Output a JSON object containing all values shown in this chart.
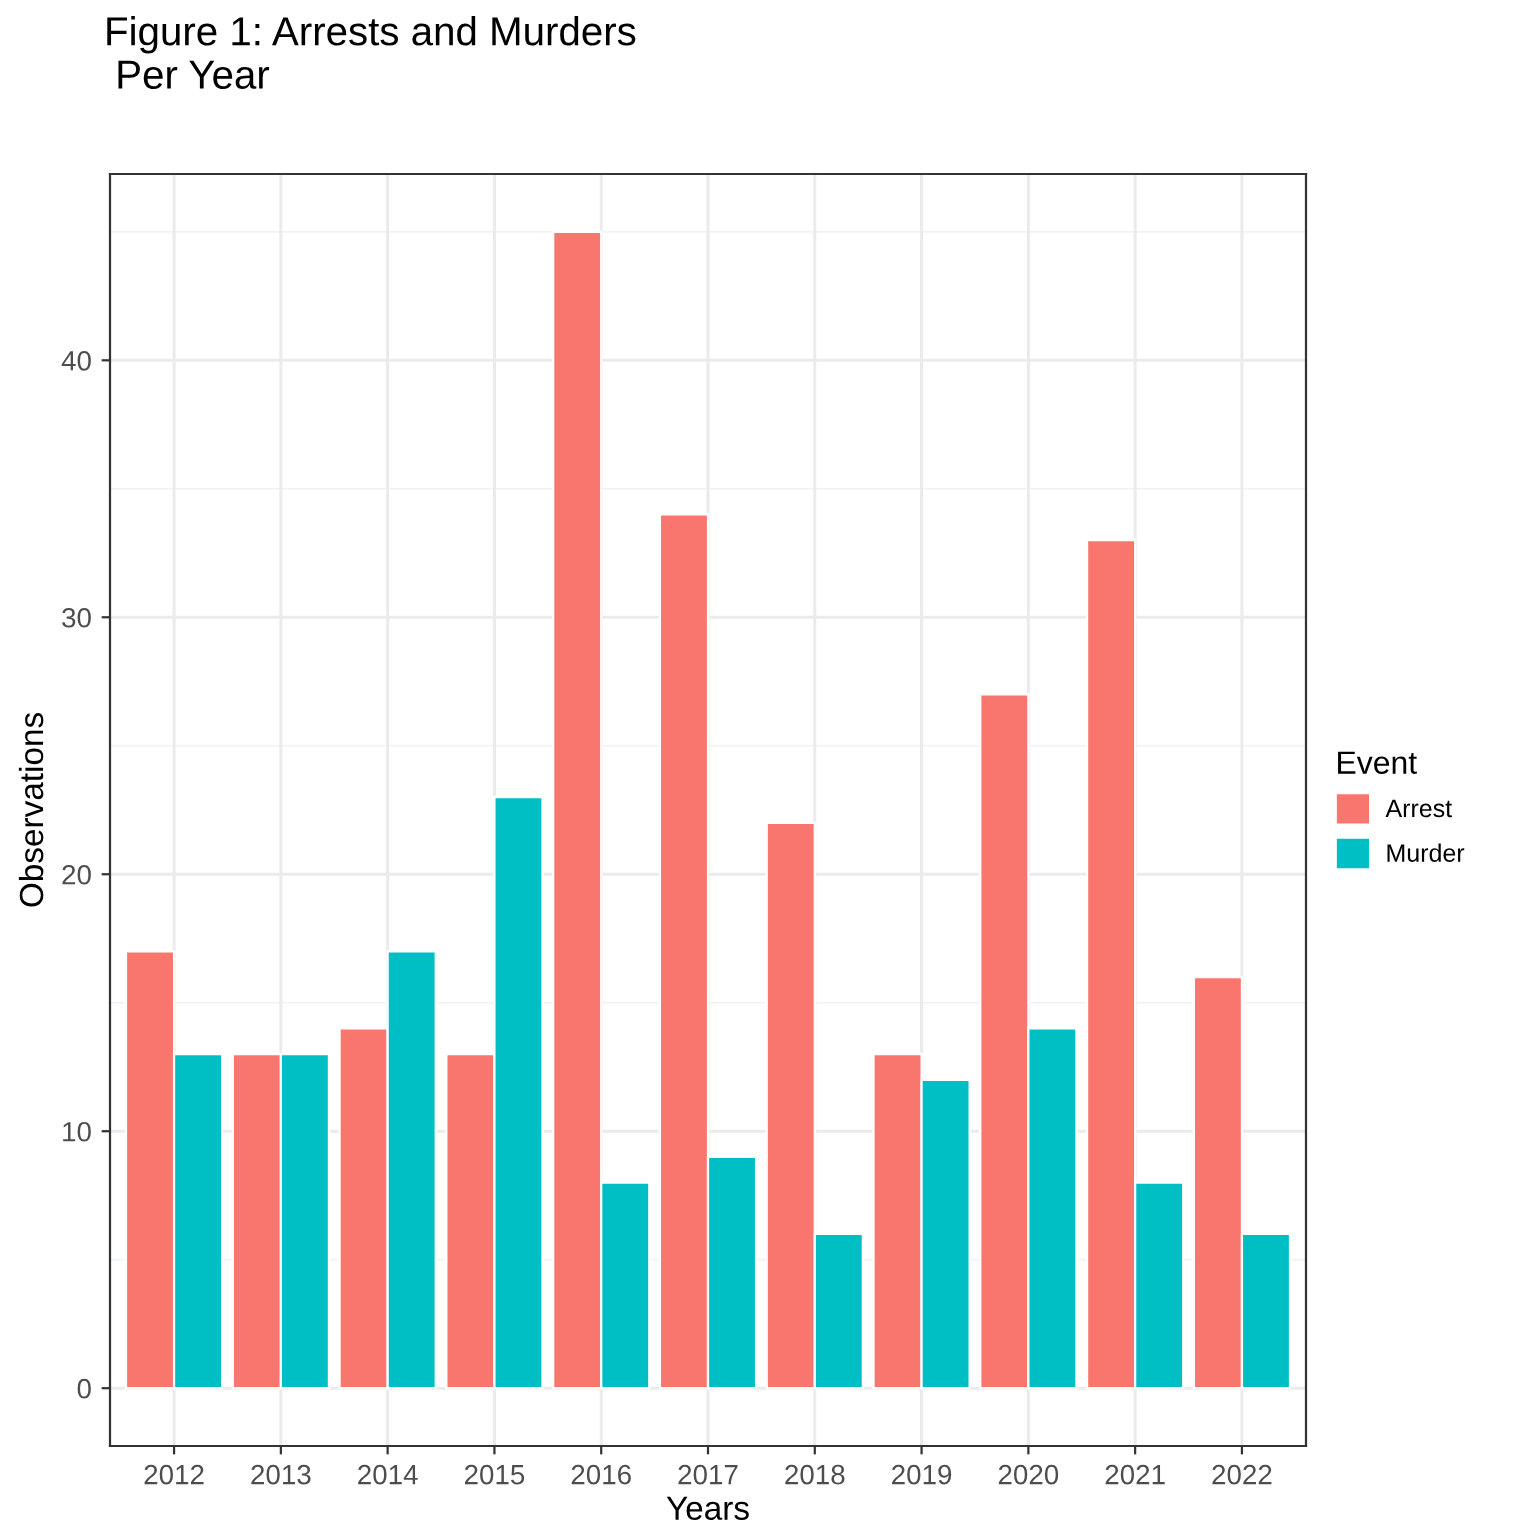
{
  "chart_data": {
    "type": "bar",
    "title": "Figure 1: Arrests and Murders\n Per Year",
    "xlabel": "Years",
    "ylabel": "Observations",
    "legend_title": "Event",
    "categories": [
      "2012",
      "2013",
      "2014",
      "2015",
      "2016",
      "2017",
      "2018",
      "2019",
      "2020",
      "2021",
      "2022"
    ],
    "series": [
      {
        "name": "Arrest",
        "color": "#f8766d",
        "values": [
          17,
          13,
          14,
          13,
          45,
          34,
          22,
          13,
          27,
          33,
          16
        ]
      },
      {
        "name": "Murder",
        "color": "#00bfc4",
        "values": [
          13,
          13,
          17,
          23,
          8,
          9,
          6,
          12,
          14,
          8,
          6
        ]
      }
    ],
    "ylim": [
      -2.25,
      47.25
    ],
    "yticks": [
      0,
      10,
      20,
      30,
      40
    ],
    "grid": true,
    "legend": "right"
  }
}
